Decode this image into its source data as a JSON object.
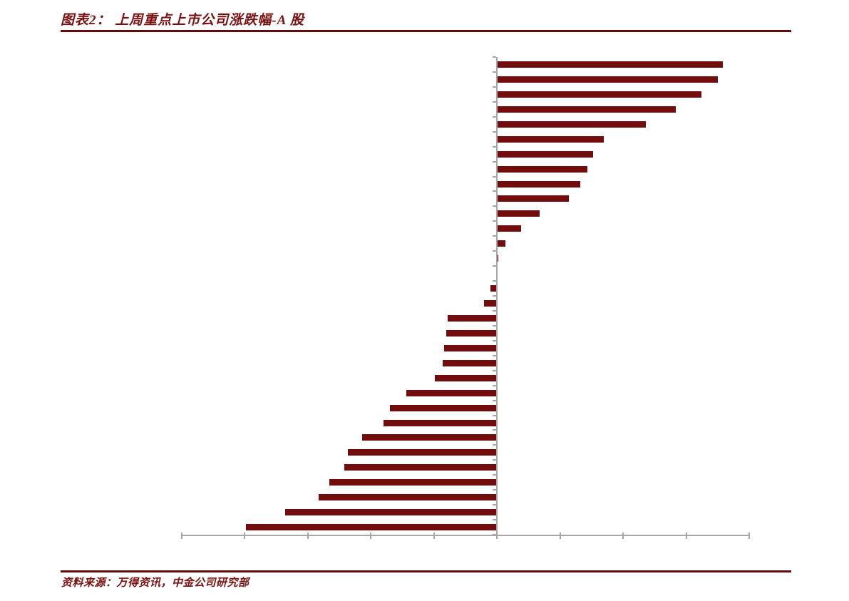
{
  "figure": {
    "title": "图表2： 上周重点上市公司涨跌幅-A 股",
    "source": "资料来源：万得资讯，中金公司研究部"
  },
  "colors": {
    "bar_fill": "#730C0C",
    "title_text": "#7B1010",
    "rule": "#640B0B",
    "axis": "#A6A6A6",
    "background": "#FFFFFF"
  },
  "chart_data": {
    "type": "bar",
    "orientation": "horizontal",
    "title": "上周重点上市公司涨跌幅-A 股",
    "xlabel": "",
    "ylabel": "",
    "legend": "none",
    "grid": false,
    "sorted": "descending",
    "category_labels_visible": false,
    "tick_value_labels_visible": false,
    "categories": [
      "",
      "",
      "",
      "",
      "",
      "",
      "",
      "",
      "",
      "",
      "",
      "",
      "",
      "",
      "",
      "",
      "",
      "",
      "",
      "",
      "",
      "",
      "",
      "",
      "",
      "",
      "",
      "",
      "",
      "",
      "",
      ""
    ],
    "values": [
      17.9,
      17.5,
      16.2,
      14.2,
      11.8,
      8.5,
      7.6,
      7.2,
      6.6,
      5.7,
      3.4,
      1.9,
      0.7,
      0.1,
      0.05,
      -0.5,
      -1.0,
      -3.9,
      -4.0,
      -4.2,
      -4.3,
      -4.9,
      -7.2,
      -8.5,
      -9.0,
      -10.7,
      -11.8,
      -12.1,
      -13.3,
      -14.1,
      -16.8,
      -19.9
    ],
    "units": "%",
    "xlim": [
      -25,
      20
    ],
    "x_tick_step": 5,
    "estimation_note": "axis tick values and company names are not printed in the figure; values estimated from bar lengths assuming 5% per unlabeled tick"
  }
}
